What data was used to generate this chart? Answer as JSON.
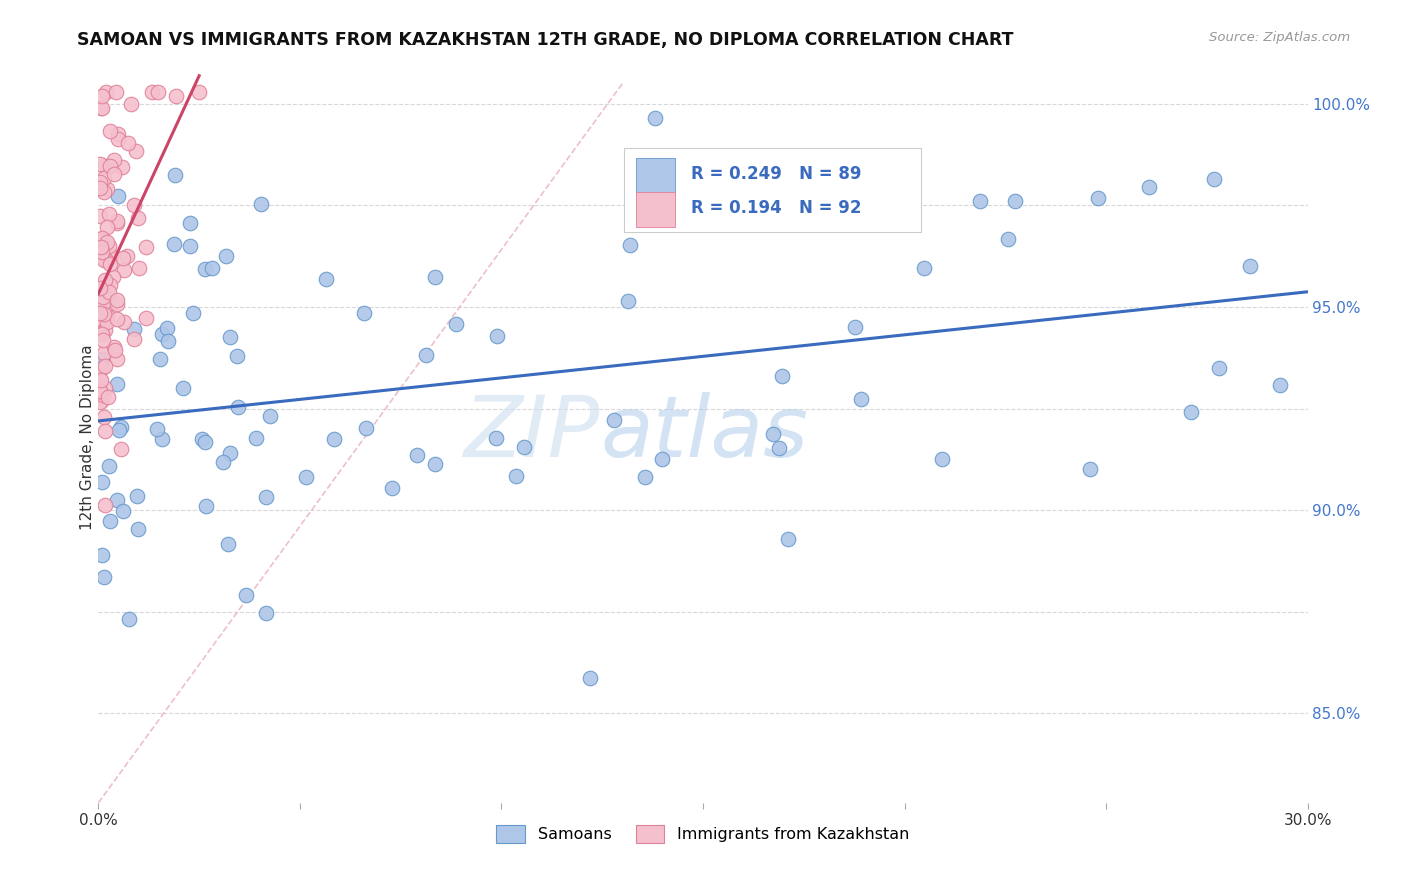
{
  "title": "SAMOAN VS IMMIGRANTS FROM KAZAKHSTAN 12TH GRADE, NO DIPLOMA CORRELATION CHART",
  "source": "Source: ZipAtlas.com",
  "ylabel": "12th Grade, No Diploma",
  "legend_text1": "R = 0.249   N = 89",
  "legend_text2": "R = 0.194   N = 92",
  "samoans_color": "#aec6e8",
  "samoans_edge": "#6699cc",
  "kazakh_color": "#f5c0ce",
  "kazakh_edge": "#e08098",
  "trendline1_color": "#3a6bbf",
  "trendline2_color": "#cc4466",
  "diagonal_color": "#e0a0b0",
  "grid_color": "#d8d8d8",
  "background": "#ffffff",
  "legend_color": "#3a6bbf",
  "xmin": 0.0,
  "xmax": 0.3,
  "ymin": 0.828,
  "ymax": 1.008
}
